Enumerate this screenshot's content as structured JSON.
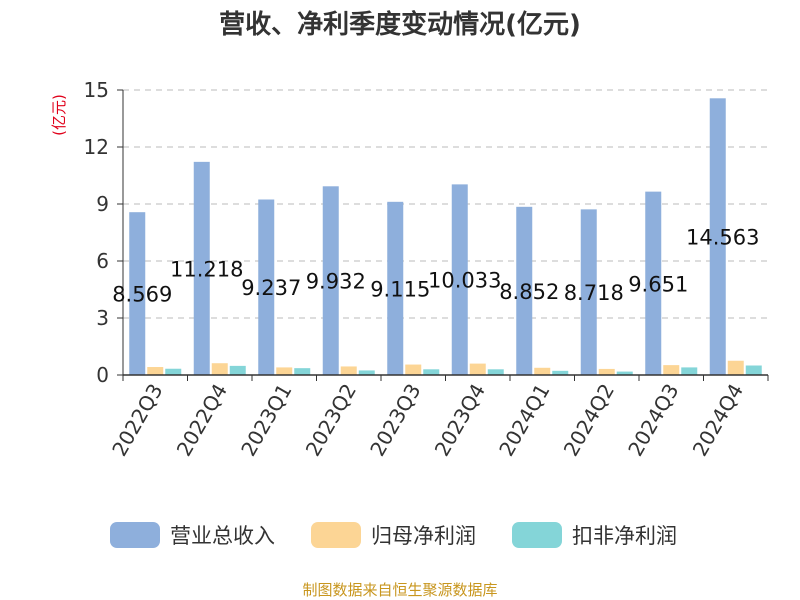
{
  "chart_data": {
    "type": "bar",
    "title": "营收、净利季度变动情况(亿元)",
    "ylabel": "(亿元)",
    "ylim": [
      0,
      15
    ],
    "yticks": [
      0,
      3,
      6,
      9,
      12,
      15
    ],
    "categories": [
      "2022Q3",
      "2022Q4",
      "2023Q1",
      "2023Q2",
      "2023Q3",
      "2023Q4",
      "2024Q1",
      "2024Q2",
      "2024Q3",
      "2024Q4"
    ],
    "series": [
      {
        "name": "营业总收入",
        "color": "#8eafdc",
        "values": [
          8.569,
          11.218,
          9.237,
          9.932,
          9.115,
          10.033,
          8.852,
          8.718,
          9.651,
          14.563
        ],
        "labels": [
          "8.569",
          "11.218",
          "9.237",
          "9.932",
          "9.115",
          "10.033",
          "8.852",
          "8.718",
          "9.651",
          "14.563"
        ]
      },
      {
        "name": "归母净利润",
        "color": "#fcd595",
        "values": [
          0.42,
          0.62,
          0.4,
          0.45,
          0.55,
          0.6,
          0.38,
          0.32,
          0.52,
          0.75
        ]
      },
      {
        "name": "扣非净利润",
        "color": "#84d5d8",
        "values": [
          0.33,
          0.48,
          0.36,
          0.24,
          0.3,
          0.3,
          0.22,
          0.18,
          0.4,
          0.5
        ]
      }
    ],
    "grid": true,
    "legend_position": "bottom"
  },
  "source": "制图数据来自恒生聚源数据库"
}
